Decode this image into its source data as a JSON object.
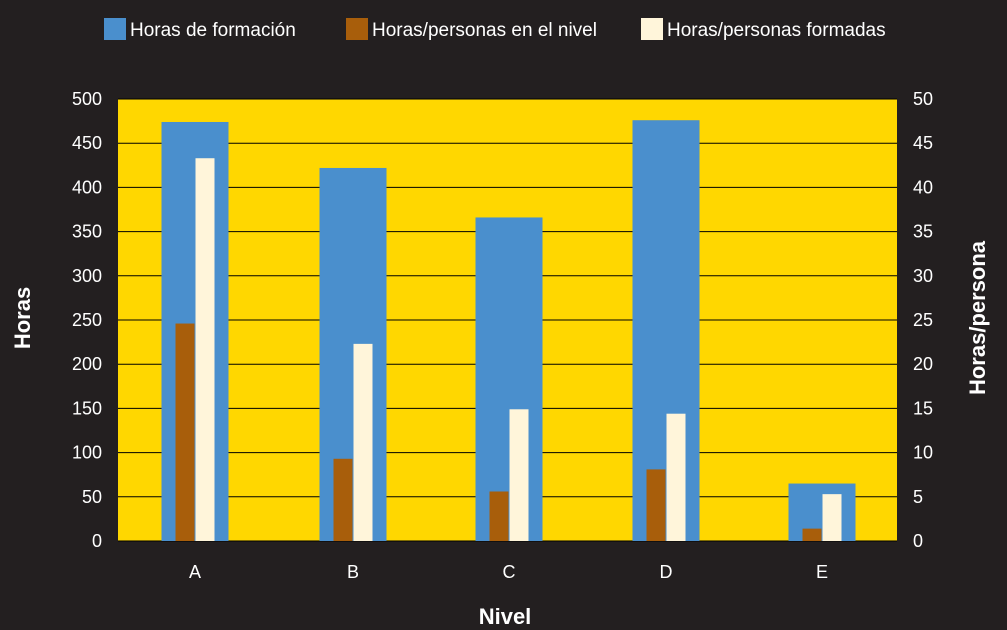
{
  "colors": {
    "background": "#231f20",
    "plot_area": "#ffd700",
    "gridline": "#000000",
    "text": "#ffffff"
  },
  "chart_data": {
    "type": "bar",
    "categories": [
      "A",
      "B",
      "C",
      "D",
      "E"
    ],
    "xlabel": "Nivel",
    "ylabel": "Horas",
    "y2label": "Horas/persona",
    "ylim": [
      0,
      500
    ],
    "y2lim": [
      0,
      50
    ],
    "yticks": [
      0,
      50,
      100,
      150,
      200,
      250,
      300,
      350,
      400,
      450,
      500
    ],
    "y2ticks": [
      0,
      5,
      10,
      15,
      20,
      25,
      30,
      35,
      40,
      45,
      50
    ],
    "grid": true,
    "legend_position": "top",
    "series": [
      {
        "name": "Horas de formación",
        "axis": "left",
        "color": "#4a8fcd",
        "values": [
          474,
          422,
          366,
          476,
          65
        ]
      },
      {
        "name": "Horas/personas en el nivel",
        "axis": "right",
        "color": "#a85e0b",
        "values": [
          24.6,
          9.3,
          5.6,
          8.1,
          1.4
        ]
      },
      {
        "name": "Horas/personas formadas",
        "axis": "right",
        "color": "#fff5da",
        "values": [
          43.3,
          22.3,
          14.9,
          14.4,
          5.3
        ]
      }
    ]
  }
}
